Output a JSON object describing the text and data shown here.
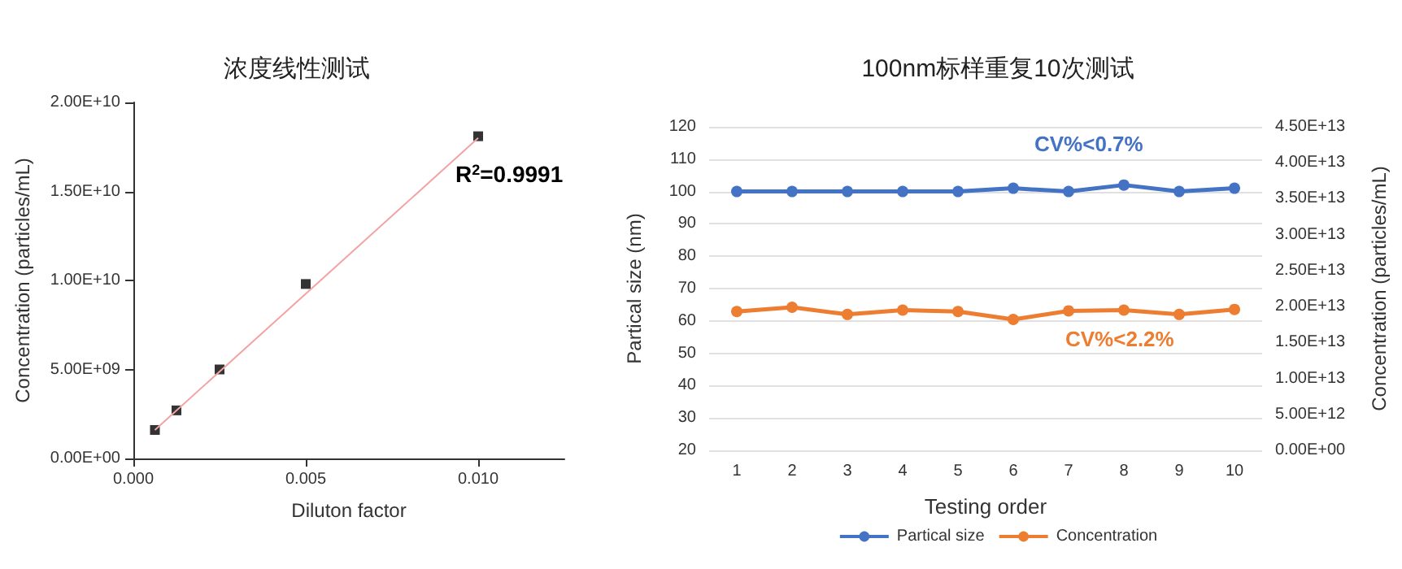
{
  "chart_data": [
    {
      "type": "scatter",
      "title": "浓度线性测试",
      "xlabel": "Diluton factor",
      "ylabel": "Concentration (particles/mL)",
      "x": [
        0.000625,
        0.00125,
        0.0025,
        0.005,
        0.01
      ],
      "series": [
        {
          "color": "#000000",
          "marker": "square",
          "values": [
            1600000000.0,
            2700000000.0,
            5000000000.0,
            9800000000.0,
            18100000000.0
          ]
        },
        {
          "type": "line",
          "color": "#f4a3a3",
          "marker": "none",
          "line_style": "solid",
          "x": [
            0.000625,
            0.01
          ],
          "values": [
            1600000000.0,
            18000000000.0
          ]
        }
      ],
      "xlim": [
        0,
        0.0125
      ],
      "xticks": [
        {
          "value": 0,
          "label": "0.000"
        },
        {
          "value": 0.005,
          "label": "0.005"
        },
        {
          "value": 0.01,
          "label": "0.010"
        }
      ],
      "ylim": [
        0,
        20000000000.0
      ],
      "yticks": [
        {
          "value": 0,
          "label": "0.00E+00"
        },
        {
          "value": 5000000000.0,
          "label": "5.00E+09"
        },
        {
          "value": 10000000000.0,
          "label": "1.00E+10"
        },
        {
          "value": 15000000000.0,
          "label": "1.50E+10"
        },
        {
          "value": 20000000000.0,
          "label": "2.00E+10"
        }
      ],
      "annotations": [
        "R$^{2}$=0.9991"
      ],
      "grid": false,
      "legend": false
    },
    {
      "type": "line",
      "title": "100nm标样重复10次测试",
      "xlabel": "Testing order",
      "ylabel": "Partical size (nm)",
      "y2label": "Concentration (particles/mL)",
      "categories": [
        "1",
        "2",
        "3",
        "4",
        "5",
        "6",
        "7",
        "8",
        "9",
        "10"
      ],
      "series": [
        {
          "name": "Partical size",
          "color": "#4472c4",
          "values": [
            100,
            100,
            100,
            100,
            100,
            101,
            100,
            102,
            100,
            101
          ]
        },
        {
          "name": "Concentration",
          "color": "#ed7d31",
          "axis": "y2",
          "values": [
            19300000000000.0,
            19900000000000.0,
            18900000000000.0,
            19500000000000.0,
            19300000000000.0,
            18200000000000.0,
            19400000000000.0,
            19500000000000.0,
            18900000000000.0,
            19600000000000.0
          ]
        }
      ],
      "ylim": [
        20,
        120
      ],
      "yticks": [
        20,
        30,
        40,
        50,
        60,
        70,
        80,
        90,
        100,
        110,
        120
      ],
      "y2lim": [
        0,
        45000000000000.0
      ],
      "y2ticks": [
        {
          "value": 0,
          "label": "0.00E+00"
        },
        {
          "value": 5000000000000.0,
          "label": "5.00E+12"
        },
        {
          "value": 10000000000000.0,
          "label": "1.00E+13"
        },
        {
          "value": 15000000000000.0,
          "label": "1.50E+13"
        },
        {
          "value": 20000000000000.0,
          "label": "2.00E+13"
        },
        {
          "value": 25000000000000.0,
          "label": "2.50E+13"
        },
        {
          "value": 30000000000000.0,
          "label": "3.00E+13"
        },
        {
          "value": 35000000000000.0,
          "label": "3.50E+13"
        },
        {
          "value": 40000000000000.0,
          "label": "4.00E+13"
        },
        {
          "value": 45000000000000.0,
          "label": "4.50E+13"
        }
      ],
      "annotations": [
        "CV%<0.7%",
        "CV%<2.2%"
      ],
      "marker": "circle",
      "line_style": "solid",
      "grid": "y",
      "legend": "bottom"
    }
  ]
}
